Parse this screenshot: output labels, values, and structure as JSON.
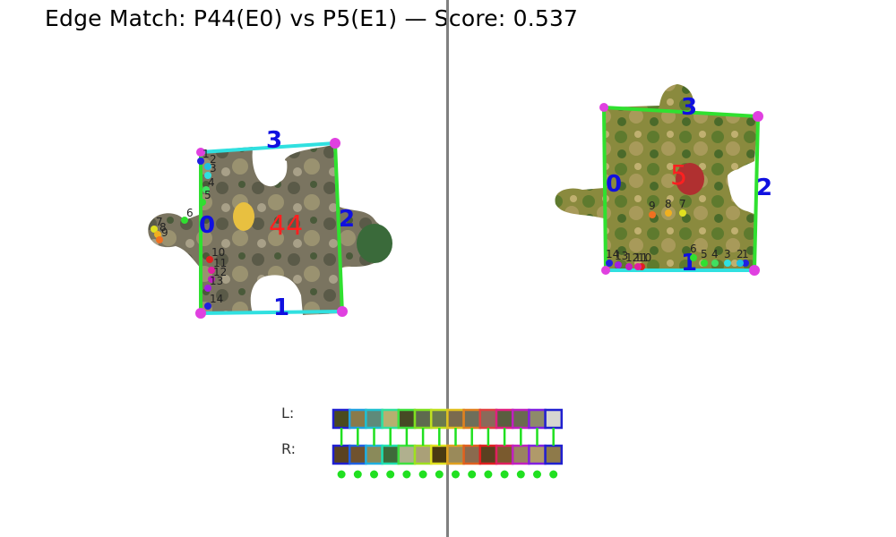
{
  "title": "Edge Match: P44(E0) vs P5(E1) — Score: 0.537",
  "score": 0.537,
  "legend": {
    "left_label": "L:",
    "right_label": "R:"
  },
  "left_piece": {
    "id_label": "44",
    "edge_labels": [
      "0",
      "1",
      "2",
      "3"
    ],
    "sample_labels": [
      "1",
      "2",
      "3",
      "4",
      "5",
      "6",
      "7",
      "8",
      "9",
      "10",
      "11",
      "12",
      "13",
      "14"
    ]
  },
  "right_piece": {
    "id_label": "5",
    "edge_labels": [
      "0",
      "1",
      "2",
      "3"
    ],
    "sample_labels": [
      "1",
      "2",
      "3",
      "4",
      "5",
      "6",
      "7",
      "8",
      "9",
      "10",
      "11",
      "12",
      "13",
      "14"
    ]
  },
  "colors": {
    "edge_label": "#1010e0",
    "piece_label": "#ff2020",
    "corner": "#e040e0",
    "match_line": "#20e020",
    "cyan_edge": "#30e0e0",
    "green_edge": "#30e030",
    "divider": "#808080"
  },
  "swatches": {
    "left": [
      "#4a4a1e",
      "#8a7a4a",
      "#5e8a7a",
      "#b6b070",
      "#464a24",
      "#5e6a4e",
      "#6a7a4e",
      "#7a6a4e",
      "#6e6e5a",
      "#8a6a5a",
      "#5a5e40",
      "#6a6a50",
      "#8e8a6a",
      "#d6d6d0"
    ],
    "right": [
      "#5a4220",
      "#70522e",
      "#8a8a5a",
      "#3e6a3a",
      "#b0b08e",
      "#aaa078",
      "#4a3a12",
      "#9a8a5a",
      "#8a6a4e",
      "#5a4020",
      "#7a5a2e",
      "#9a8460",
      "#b09a6a",
      "#8e7a4a"
    ],
    "left_border": [
      "#2020d0",
      "#20a0e0",
      "#20c0d0",
      "#30e0a0",
      "#40e040",
      "#80e020",
      "#c0e020",
      "#e0c020",
      "#e08020",
      "#e04040",
      "#e02080",
      "#c020c0",
      "#8020e0",
      "#2020d0"
    ],
    "right_border": [
      "#2020d0",
      "#2060e0",
      "#20b0e0",
      "#20e0b0",
      "#40e040",
      "#a0e020",
      "#e0e020",
      "#e0a020",
      "#e06020",
      "#e02020",
      "#e02060",
      "#c020c0",
      "#8020e0",
      "#2020d0"
    ]
  }
}
